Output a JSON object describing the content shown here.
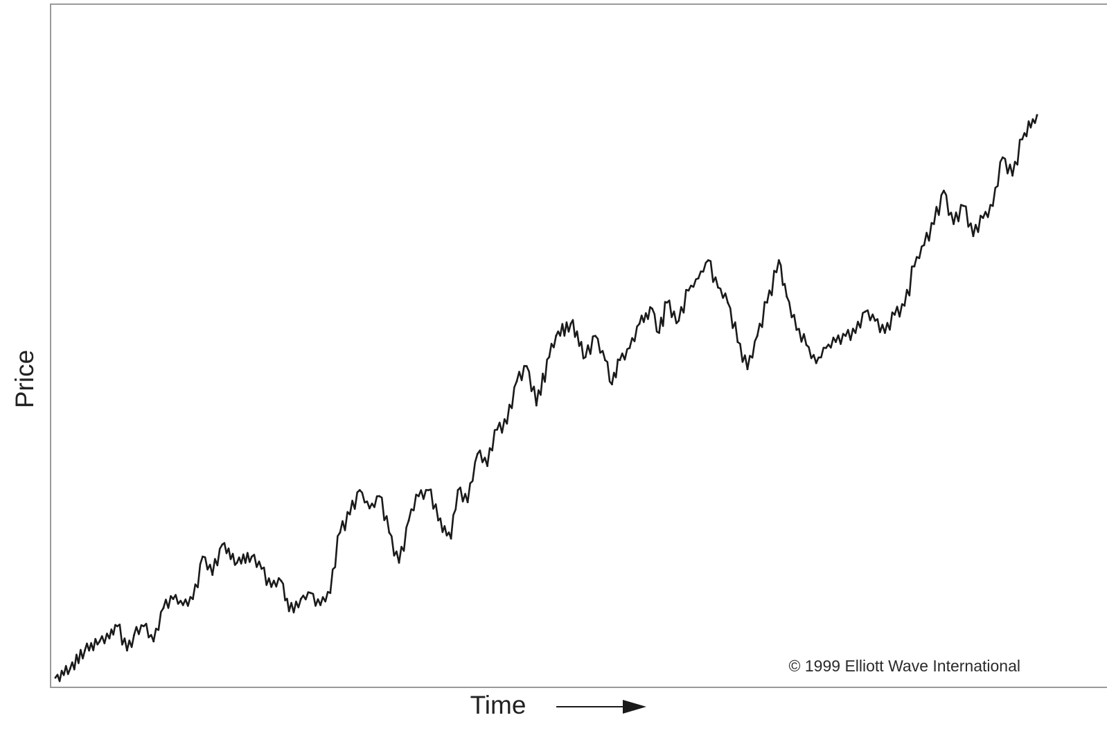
{
  "chart_data": {
    "type": "line",
    "title": "",
    "xlabel": "Time",
    "ylabel": "Price",
    "grid": false,
    "legend": "none",
    "annotations": [
      "© 1999 Elliott Wave International"
    ],
    "xlim": [
      0,
      100
    ],
    "ylim": [
      0,
      100
    ],
    "line_color": "#1a1a1a",
    "frame_color": "#9a9a9a",
    "series": [
      {
        "x": [
          0,
          1.5,
          3,
          4.5,
          5.5,
          6.3,
          7.3,
          8,
          9,
          10,
          11,
          12,
          13,
          14,
          15,
          16,
          17,
          18.5,
          20,
          21,
          22,
          23,
          23.8,
          25,
          26,
          27,
          28,
          29,
          30,
          31,
          32,
          33,
          34,
          35,
          36,
          37,
          38,
          39,
          40.3,
          41,
          42,
          43,
          44,
          45,
          46,
          47,
          48,
          49,
          50.3,
          51,
          52.5,
          54,
          55,
          56,
          56.7,
          57.5,
          58.5,
          59.5,
          60.8,
          61.5,
          62.3,
          63.5,
          64.5,
          65.5,
          66.5,
          67.5,
          68.5,
          69.5,
          70.5,
          71.5,
          72.5,
          73.7,
          74.5,
          75.5,
          76.5,
          77.5,
          78.5,
          79.5,
          80.5,
          81.5,
          82.5,
          83.5,
          84.5,
          85.5,
          86.5,
          87.5,
          88.5,
          89.5,
          90.5,
          91.5,
          92.5,
          93.5,
          94.5,
          95.5,
          96.5,
          97.5,
          98.5,
          100
        ],
        "y": [
          0,
          1.5,
          4.5,
          6,
          6.5,
          8.5,
          4.5,
          7,
          8.5,
          6,
          11.5,
          13,
          12,
          13,
          20,
          17,
          22,
          19,
          20,
          18,
          15,
          16,
          11,
          13,
          14,
          12,
          14,
          24,
          27,
          31,
          28,
          30,
          24,
          19,
          26,
          30,
          31,
          26,
          23,
          31,
          29,
          37,
          35,
          41,
          42,
          49,
          51.5,
          45,
          53,
          56.5,
          58.5,
          53,
          56.5,
          52.5,
          48.5,
          52.5,
          54.5,
          58.5,
          61,
          57,
          62,
          59,
          64,
          66,
          69,
          64.5,
          62,
          55.5,
          51,
          56.5,
          62,
          69,
          63,
          57.5,
          55,
          52,
          54.5,
          55.5,
          56.5,
          57,
          60.5,
          59,
          57,
          60,
          61.5,
          68,
          71.5,
          75,
          80.5,
          75,
          78,
          73,
          76,
          78,
          86,
          83,
          89,
          93
        ]
      }
    ]
  }
}
